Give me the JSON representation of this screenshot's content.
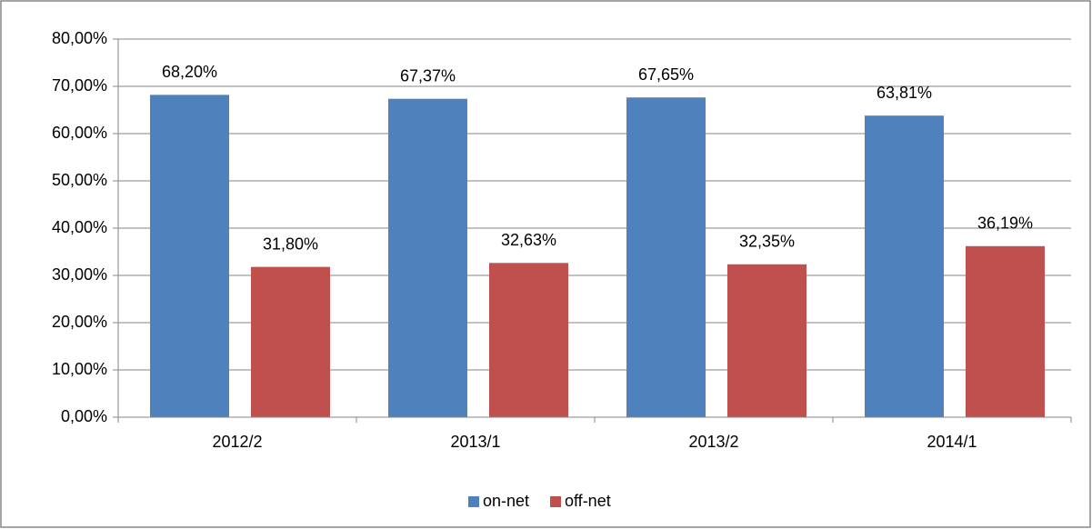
{
  "chart_data": {
    "type": "bar",
    "categories": [
      "2012/2",
      "2013/1",
      "2013/2",
      "2014/1"
    ],
    "series": [
      {
        "name": "on-net",
        "color": "#4f81bd",
        "values": [
          68.2,
          67.37,
          67.65,
          63.81
        ],
        "value_labels": [
          "68,20%",
          "67,37%",
          "67,65%",
          "63,81%"
        ]
      },
      {
        "name": "off-net",
        "color": "#c0504d",
        "values": [
          31.8,
          32.63,
          32.35,
          36.19
        ],
        "value_labels": [
          "31,80%",
          "32,63%",
          "32,35%",
          "36,19%"
        ]
      }
    ],
    "ylim": [
      0,
      80
    ],
    "yticks": [
      {
        "value": 0,
        "label": "0,00%"
      },
      {
        "value": 10,
        "label": "10,00%"
      },
      {
        "value": 20,
        "label": "20,00%"
      },
      {
        "value": 30,
        "label": "30,00%"
      },
      {
        "value": 40,
        "label": "40,00%"
      },
      {
        "value": 50,
        "label": "50,00%"
      },
      {
        "value": 60,
        "label": "60,00%"
      },
      {
        "value": 70,
        "label": "70,00%"
      },
      {
        "value": 80,
        "label": "80,00%"
      }
    ],
    "grid": true,
    "legend": "bottom"
  }
}
